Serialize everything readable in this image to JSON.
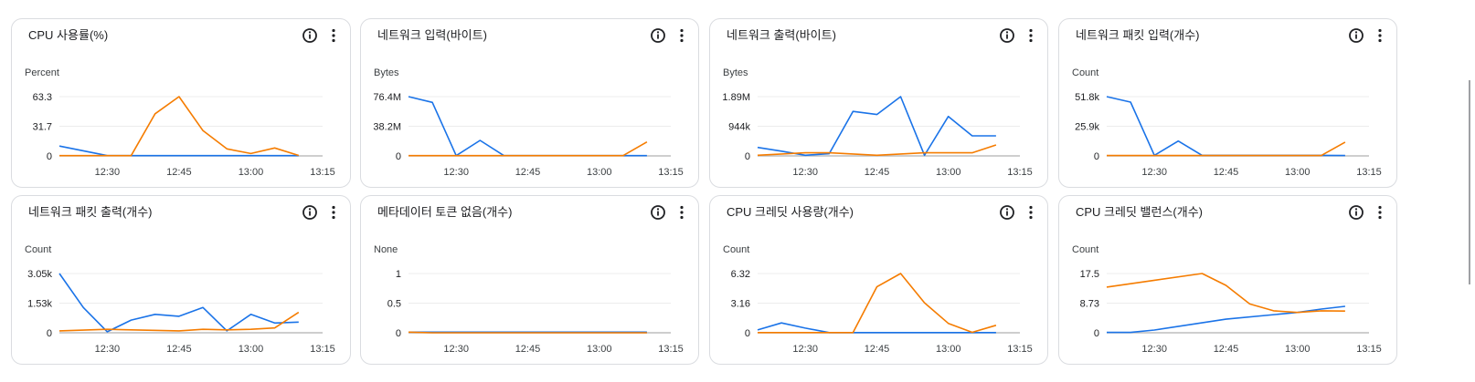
{
  "colors": {
    "series_blue": "#1a73e8",
    "series_orange": "#f57c00",
    "grid": "#ececec",
    "axis": "#bdbdbd"
  },
  "icons": {
    "info": "info-icon",
    "more": "more-vert-icon"
  },
  "chart_data": [
    {
      "type": "line",
      "title": "CPU 사용률(%)",
      "ylabel": "Percent",
      "yticks": [
        "0",
        "31.7",
        "63.3"
      ],
      "ylim": [
        0,
        63.3
      ],
      "xticks": [
        "12:30",
        "12:45",
        "13:00",
        "13:15"
      ],
      "xlim": [
        "12:20",
        "13:15"
      ],
      "series": [
        {
          "color": "#1a73e8",
          "points": [
            [
              "12:20",
              10.5
            ],
            [
              "12:30",
              0.3
            ],
            [
              "12:35",
              0.3
            ],
            [
              "12:45",
              0.3
            ],
            [
              "13:00",
              0.3
            ],
            [
              "13:10",
              0.3
            ]
          ]
        },
        {
          "color": "#f57c00",
          "points": [
            [
              "12:20",
              0.3
            ],
            [
              "12:30",
              0.3
            ],
            [
              "12:35",
              0.3
            ],
            [
              "12:40",
              45
            ],
            [
              "12:45",
              63.3
            ],
            [
              "12:50",
              27
            ],
            [
              "12:55",
              7.5
            ],
            [
              "13:00",
              2.5
            ],
            [
              "13:05",
              8.5
            ],
            [
              "13:10",
              0.5
            ]
          ]
        }
      ]
    },
    {
      "type": "line",
      "title": "네트워크 입력(바이트)",
      "ylabel": "Bytes",
      "yticks": [
        "0",
        "38.2M",
        "76.4M"
      ],
      "ylim": [
        0,
        76.4
      ],
      "xticks": [
        "12:30",
        "12:45",
        "13:00",
        "13:15"
      ],
      "xlim": [
        "12:20",
        "13:15"
      ],
      "series": [
        {
          "color": "#1a73e8",
          "points": [
            [
              "12:20",
              76.4
            ],
            [
              "12:25",
              69
            ],
            [
              "12:30",
              0.3
            ],
            [
              "12:35",
              20
            ],
            [
              "12:40",
              0.3
            ],
            [
              "12:45",
              0.3
            ],
            [
              "13:00",
              0.3
            ],
            [
              "13:10",
              0.3
            ]
          ]
        },
        {
          "color": "#f57c00",
          "points": [
            [
              "12:20",
              0.3
            ],
            [
              "12:45",
              0.3
            ],
            [
              "13:00",
              0.3
            ],
            [
              "13:05",
              0.3
            ],
            [
              "13:10",
              18
            ]
          ]
        }
      ]
    },
    {
      "type": "line",
      "title": "네트워크 출력(바이트)",
      "ylabel": "Bytes",
      "yticks": [
        "0",
        "944k",
        "1.89M"
      ],
      "ylim": [
        0,
        1.89
      ],
      "xticks": [
        "12:30",
        "12:45",
        "13:00",
        "13:15"
      ],
      "xlim": [
        "12:20",
        "13:15"
      ],
      "series": [
        {
          "color": "#1a73e8",
          "points": [
            [
              "12:20",
              0.27
            ],
            [
              "12:25",
              0.15
            ],
            [
              "12:30",
              0.02
            ],
            [
              "12:35",
              0.07
            ],
            [
              "12:40",
              1.42
            ],
            [
              "12:45",
              1.32
            ],
            [
              "12:50",
              1.89
            ],
            [
              "12:55",
              0.02
            ],
            [
              "13:00",
              1.26
            ],
            [
              "13:05",
              0.64
            ],
            [
              "13:10",
              0.64
            ]
          ]
        },
        {
          "color": "#f57c00",
          "points": [
            [
              "12:20",
              0.02
            ],
            [
              "12:30",
              0.1
            ],
            [
              "12:35",
              0.1
            ],
            [
              "12:45",
              0.02
            ],
            [
              "12:55",
              0.1
            ],
            [
              "13:05",
              0.1
            ],
            [
              "13:10",
              0.35
            ]
          ]
        }
      ]
    },
    {
      "type": "line",
      "title": "네트워크 패킷 입력(개수)",
      "ylabel": "Count",
      "yticks": [
        "0",
        "25.9k",
        "51.8k"
      ],
      "ylim": [
        0,
        51.8
      ],
      "xticks": [
        "12:30",
        "12:45",
        "13:00",
        "13:15"
      ],
      "xlim": [
        "12:20",
        "13:15"
      ],
      "series": [
        {
          "color": "#1a73e8",
          "points": [
            [
              "12:20",
              51.8
            ],
            [
              "12:25",
              47
            ],
            [
              "12:30",
              0.5
            ],
            [
              "12:35",
              13
            ],
            [
              "12:40",
              0.5
            ],
            [
              "12:45",
              0.5
            ],
            [
              "13:00",
              0.5
            ],
            [
              "13:05",
              0.5
            ],
            [
              "13:10",
              0.3
            ]
          ]
        },
        {
          "color": "#f57c00",
          "points": [
            [
              "12:20",
              0.3
            ],
            [
              "12:45",
              0.3
            ],
            [
              "13:00",
              0.3
            ],
            [
              "13:05",
              0.3
            ],
            [
              "13:10",
              12
            ]
          ]
        }
      ]
    },
    {
      "type": "line",
      "title": "네트워크 패킷 출력(개수)",
      "ylabel": "Count",
      "yticks": [
        "0",
        "1.53k",
        "3.05k"
      ],
      "ylim": [
        0,
        3.05
      ],
      "xticks": [
        "12:30",
        "12:45",
        "13:00",
        "13:15"
      ],
      "xlim": [
        "12:20",
        "13:15"
      ],
      "series": [
        {
          "color": "#1a73e8",
          "points": [
            [
              "12:20",
              3.05
            ],
            [
              "12:25",
              1.3
            ],
            [
              "12:30",
              0.05
            ],
            [
              "12:35",
              0.65
            ],
            [
              "12:40",
              0.95
            ],
            [
              "12:45",
              0.85
            ],
            [
              "12:50",
              1.3
            ],
            [
              "12:55",
              0.1
            ],
            [
              "13:00",
              0.95
            ],
            [
              "13:05",
              0.5
            ],
            [
              "13:10",
              0.55
            ]
          ]
        },
        {
          "color": "#f57c00",
          "points": [
            [
              "12:20",
              0.1
            ],
            [
              "12:30",
              0.18
            ],
            [
              "12:35",
              0.15
            ],
            [
              "12:45",
              0.1
            ],
            [
              "12:50",
              0.18
            ],
            [
              "12:55",
              0.15
            ],
            [
              "13:00",
              0.18
            ],
            [
              "13:05",
              0.25
            ],
            [
              "13:10",
              1.05
            ]
          ]
        }
      ]
    },
    {
      "type": "line",
      "title": "메타데이터 토큰 없음(개수)",
      "ylabel": "None",
      "yticks": [
        "0",
        "0.5",
        "1"
      ],
      "ylim": [
        0,
        1
      ],
      "xticks": [
        "12:30",
        "12:45",
        "13:00",
        "13:15"
      ],
      "xlim": [
        "12:20",
        "13:15"
      ],
      "series": [
        {
          "color": "#1a73e8",
          "points": [
            [
              "12:20",
              0.01
            ],
            [
              "13:10",
              0.01
            ]
          ]
        },
        {
          "color": "#f57c00",
          "points": [
            [
              "12:20",
              0.01
            ],
            [
              "12:25",
              0
            ],
            [
              "13:10",
              0
            ]
          ]
        }
      ]
    },
    {
      "type": "line",
      "title": "CPU 크레딧 사용량(개수)",
      "ylabel": "Count",
      "yticks": [
        "0",
        "3.16",
        "6.32"
      ],
      "ylim": [
        0,
        6.32
      ],
      "xticks": [
        "12:30",
        "12:45",
        "13:00",
        "13:15"
      ],
      "xlim": [
        "12:20",
        "13:15"
      ],
      "series": [
        {
          "color": "#1a73e8",
          "points": [
            [
              "12:20",
              0.3
            ],
            [
              "12:25",
              1.05
            ],
            [
              "12:30",
              0.5
            ],
            [
              "12:35",
              0.02
            ],
            [
              "12:45",
              0.02
            ],
            [
              "13:00",
              0.02
            ],
            [
              "13:10",
              0.02
            ]
          ]
        },
        {
          "color": "#f57c00",
          "points": [
            [
              "12:20",
              0.02
            ],
            [
              "12:35",
              0.02
            ],
            [
              "12:40",
              0.02
            ],
            [
              "12:45",
              4.9
            ],
            [
              "12:50",
              6.32
            ],
            [
              "12:55",
              3.2
            ],
            [
              "13:00",
              1
            ],
            [
              "13:05",
              0.05
            ],
            [
              "13:10",
              0.8
            ]
          ]
        }
      ]
    },
    {
      "type": "line",
      "title": "CPU 크레딧 밸런스(개수)",
      "ylabel": "Count",
      "yticks": [
        "0",
        "8.73",
        "17.5"
      ],
      "ylim": [
        0,
        17.5
      ],
      "xticks": [
        "12:30",
        "12:45",
        "13:00",
        "13:15"
      ],
      "xlim": [
        "12:20",
        "13:15"
      ],
      "series": [
        {
          "color": "#1a73e8",
          "points": [
            [
              "12:20",
              0.1
            ],
            [
              "12:25",
              0.1
            ],
            [
              "12:30",
              0.8
            ],
            [
              "12:45",
              4
            ],
            [
              "13:00",
              6
            ],
            [
              "13:05",
              7
            ],
            [
              "13:10",
              7.8
            ]
          ]
        },
        {
          "color": "#f57c00",
          "points": [
            [
              "12:20",
              13.5
            ],
            [
              "12:30",
              15.5
            ],
            [
              "12:40",
              17.5
            ],
            [
              "12:45",
              14
            ],
            [
              "12:50",
              8.5
            ],
            [
              "12:55",
              6.5
            ],
            [
              "13:00",
              6
            ],
            [
              "13:05",
              6.5
            ],
            [
              "13:10",
              6.4
            ]
          ]
        }
      ]
    }
  ]
}
